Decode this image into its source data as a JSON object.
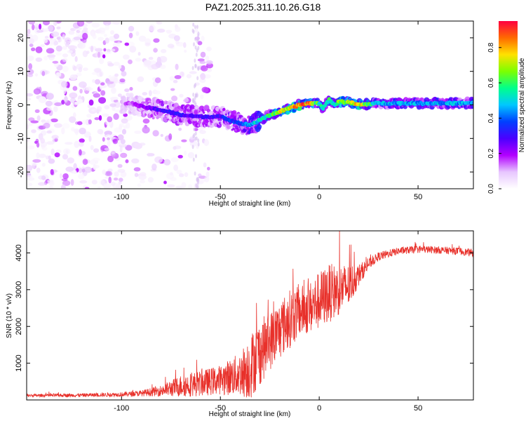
{
  "title": "PAZ1.2025.311.10.26.G18",
  "colors": {
    "snr_line": "#e8302a",
    "scatter_light": "#d9c2f2",
    "scatter_mid": "#9a5cf0",
    "scatter_dark": "#5a00e6",
    "frame": "#000000"
  },
  "chart_data": [
    {
      "type": "heatmap",
      "name": "spectrogram",
      "title": "PAZ1.2025.311.10.26.G18",
      "xlabel": "Height of straight line (km)",
      "ylabel": "Frequency (Hz)",
      "xlim": [
        -148,
        78
      ],
      "ylim": [
        -25,
        25
      ],
      "xticks": [
        -100,
        -50,
        0,
        50
      ],
      "xtick_labels": [
        "-100",
        "-50",
        "0",
        "50"
      ],
      "yticks": [
        -20,
        -10,
        0,
        10,
        20
      ],
      "ytick_labels": [
        "-20",
        "-10",
        "0",
        "10",
        "20"
      ],
      "colorbar": {
        "label": "Normalized spectral amplitude",
        "range": [
          0,
          0.95
        ],
        "ticks": [
          0.0,
          0.2,
          0.4,
          0.6,
          0.8
        ],
        "tick_labels": [
          "0.0",
          "0.2",
          "0.4",
          "0.6",
          "0.8"
        ],
        "colormap": [
          "#ffffff",
          "#e7c6ff",
          "#b200ff",
          "#4b00ff",
          "#0040ff",
          "#00c8ff",
          "#00ff8c",
          "#7cff00",
          "#ffe100",
          "#ff6a00",
          "#ff0040"
        ]
      },
      "ridge": {
        "description": "dominant frequency track vs height",
        "x": [
          -95,
          -90,
          -80,
          -70,
          -60,
          -50,
          -45,
          -40,
          -35,
          -30,
          -25,
          -20,
          -15,
          -10,
          -5,
          0,
          2,
          5,
          8,
          10,
          15,
          20,
          30,
          40,
          50,
          60,
          70,
          78
        ],
        "y": [
          0.5,
          -0.5,
          -1.5,
          -3.0,
          -3.5,
          -3.5,
          -4.5,
          -5.5,
          -6.0,
          -4.5,
          -3.0,
          -2.0,
          -1.0,
          0.0,
          0.5,
          0.5,
          -1.0,
          1.5,
          0.0,
          1.0,
          0.8,
          0.0,
          0.5,
          0.5,
          0.5,
          0.5,
          0.5,
          0.5
        ],
        "amplitude": [
          0.15,
          0.2,
          0.3,
          0.3,
          0.28,
          0.3,
          0.35,
          0.35,
          0.45,
          0.5,
          0.6,
          0.7,
          0.75,
          0.85,
          0.8,
          0.55,
          0.5,
          0.55,
          0.5,
          0.65,
          0.7,
          0.75,
          0.45,
          0.45,
          0.45,
          0.45,
          0.45,
          0.45
        ]
      },
      "noise_scatter": {
        "x_range": [
          -148,
          -55
        ],
        "y_range": [
          -25,
          25
        ],
        "amplitude_range": [
          0.02,
          0.2
        ]
      }
    },
    {
      "type": "line",
      "name": "snr",
      "xlabel": "Height of straight line (km)",
      "ylabel": "SNR (10 * v/v)",
      "xlim": [
        -148,
        78
      ],
      "ylim": [
        0,
        4600
      ],
      "xticks": [
        -100,
        -50,
        0,
        50
      ],
      "xtick_labels": [
        "-100",
        "-50",
        "0",
        "50"
      ],
      "yticks": [
        1000,
        2000,
        3000,
        4000
      ],
      "ytick_labels": [
        "1000",
        "2000",
        "3000",
        "4000"
      ],
      "envelope": {
        "x": [
          -148,
          -120,
          -100,
          -90,
          -80,
          -70,
          -60,
          -50,
          -40,
          -35,
          -30,
          -25,
          -20,
          -15,
          -10,
          -5,
          0,
          5,
          10,
          15,
          20,
          25,
          30,
          40,
          50,
          60,
          70,
          78
        ],
        "mean": [
          120,
          130,
          150,
          180,
          250,
          380,
          450,
          550,
          700,
          900,
          1300,
          1600,
          1900,
          2200,
          2400,
          2500,
          2700,
          2900,
          3000,
          3100,
          3400,
          3700,
          3900,
          4050,
          4100,
          4080,
          4050,
          4000
        ],
        "spread": [
          40,
          50,
          60,
          80,
          150,
          300,
          350,
          400,
          600,
          900,
          900,
          800,
          800,
          800,
          700,
          700,
          800,
          800,
          700,
          600,
          300,
          150,
          120,
          100,
          100,
          100,
          100,
          100
        ]
      }
    }
  ]
}
